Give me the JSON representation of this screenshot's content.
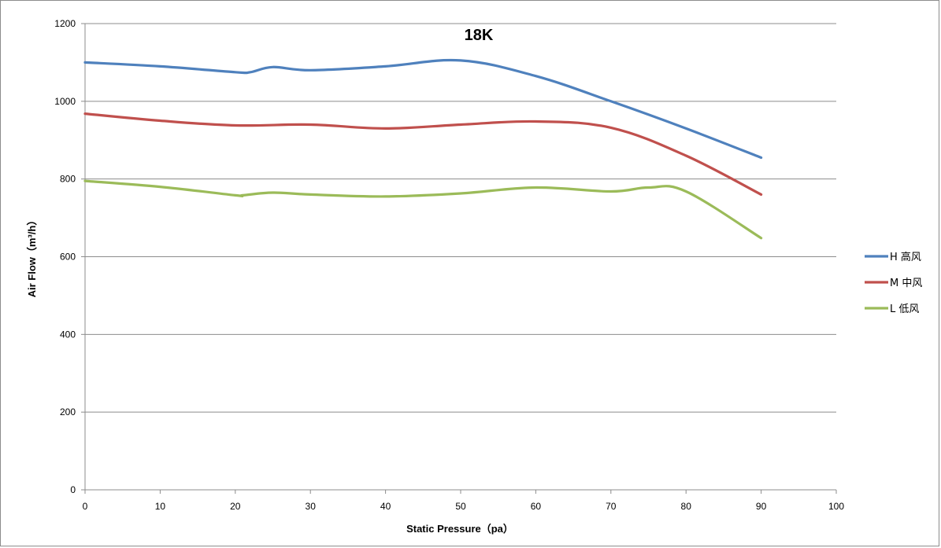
{
  "chart_data": {
    "type": "line",
    "title": "18K",
    "xlabel": "Static Pressure（pa）",
    "ylabel": "Air Flow（m³/h）",
    "xlim": [
      0,
      100
    ],
    "ylim": [
      0,
      1200
    ],
    "x_ticks": [
      0,
      10,
      20,
      30,
      40,
      50,
      60,
      70,
      80,
      90,
      100
    ],
    "y_ticks": [
      0,
      200,
      400,
      600,
      800,
      1000,
      1200
    ],
    "grid": "horizontal",
    "legend_position": "right",
    "series": [
      {
        "name": "H 高风",
        "color": "#4f81bd",
        "x": [
          0,
          10,
          20,
          22,
          25,
          30,
          40,
          50,
          60,
          70,
          80,
          90
        ],
        "values": [
          1100,
          1090,
          1075,
          1075,
          1088,
          1080,
          1090,
          1105,
          1065,
          1000,
          930,
          855
        ]
      },
      {
        "name": "M 中风",
        "color": "#c0504d",
        "x": [
          0,
          10,
          20,
          30,
          40,
          50,
          60,
          70,
          80,
          90
        ],
        "values": [
          968,
          950,
          938,
          940,
          930,
          940,
          948,
          932,
          860,
          760
        ]
      },
      {
        "name": "L 低风",
        "color": "#9bbb59",
        "x": [
          0,
          10,
          20,
          21,
          25,
          30,
          40,
          50,
          60,
          70,
          75,
          80,
          90
        ],
        "values": [
          795,
          780,
          758,
          758,
          765,
          760,
          755,
          763,
          778,
          768,
          778,
          768,
          648
        ]
      }
    ]
  }
}
